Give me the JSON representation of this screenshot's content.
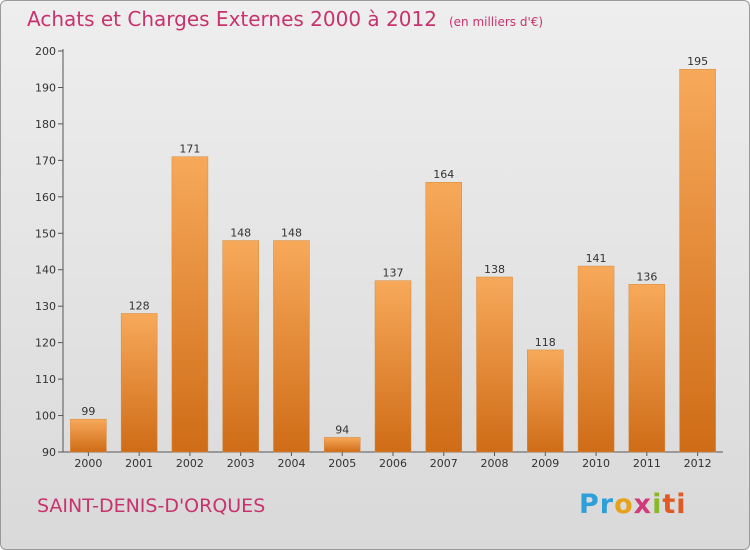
{
  "title": "Achats et Charges Externes 2000 à 2012",
  "unit": "(en milliers d'€)",
  "commune": "SAINT-DENIS-D'ORQUES",
  "logo": {
    "letters": [
      "Pr",
      "o",
      "x",
      "i",
      "ti"
    ]
  },
  "colors": {
    "title": "#c8336e",
    "bar_light": "#f6a552",
    "bar_dark": "#d06f1a"
  },
  "chart_data": {
    "type": "bar",
    "title": "Achats et Charges Externes 2000 à 2012",
    "subtitle": "(en milliers d'€)",
    "xlabel": "",
    "ylabel": "",
    "categories": [
      "2000",
      "2001",
      "2002",
      "2003",
      "2004",
      "2005",
      "2006",
      "2007",
      "2008",
      "2009",
      "2010",
      "2011",
      "2012"
    ],
    "values": [
      99,
      128,
      171,
      148,
      148,
      94,
      137,
      164,
      138,
      118,
      141,
      136,
      195
    ],
    "ylim": [
      90,
      200
    ],
    "yticks": [
      90,
      100,
      110,
      120,
      130,
      140,
      150,
      160,
      170,
      180,
      190,
      200
    ],
    "grid": false,
    "legend": "none"
  }
}
